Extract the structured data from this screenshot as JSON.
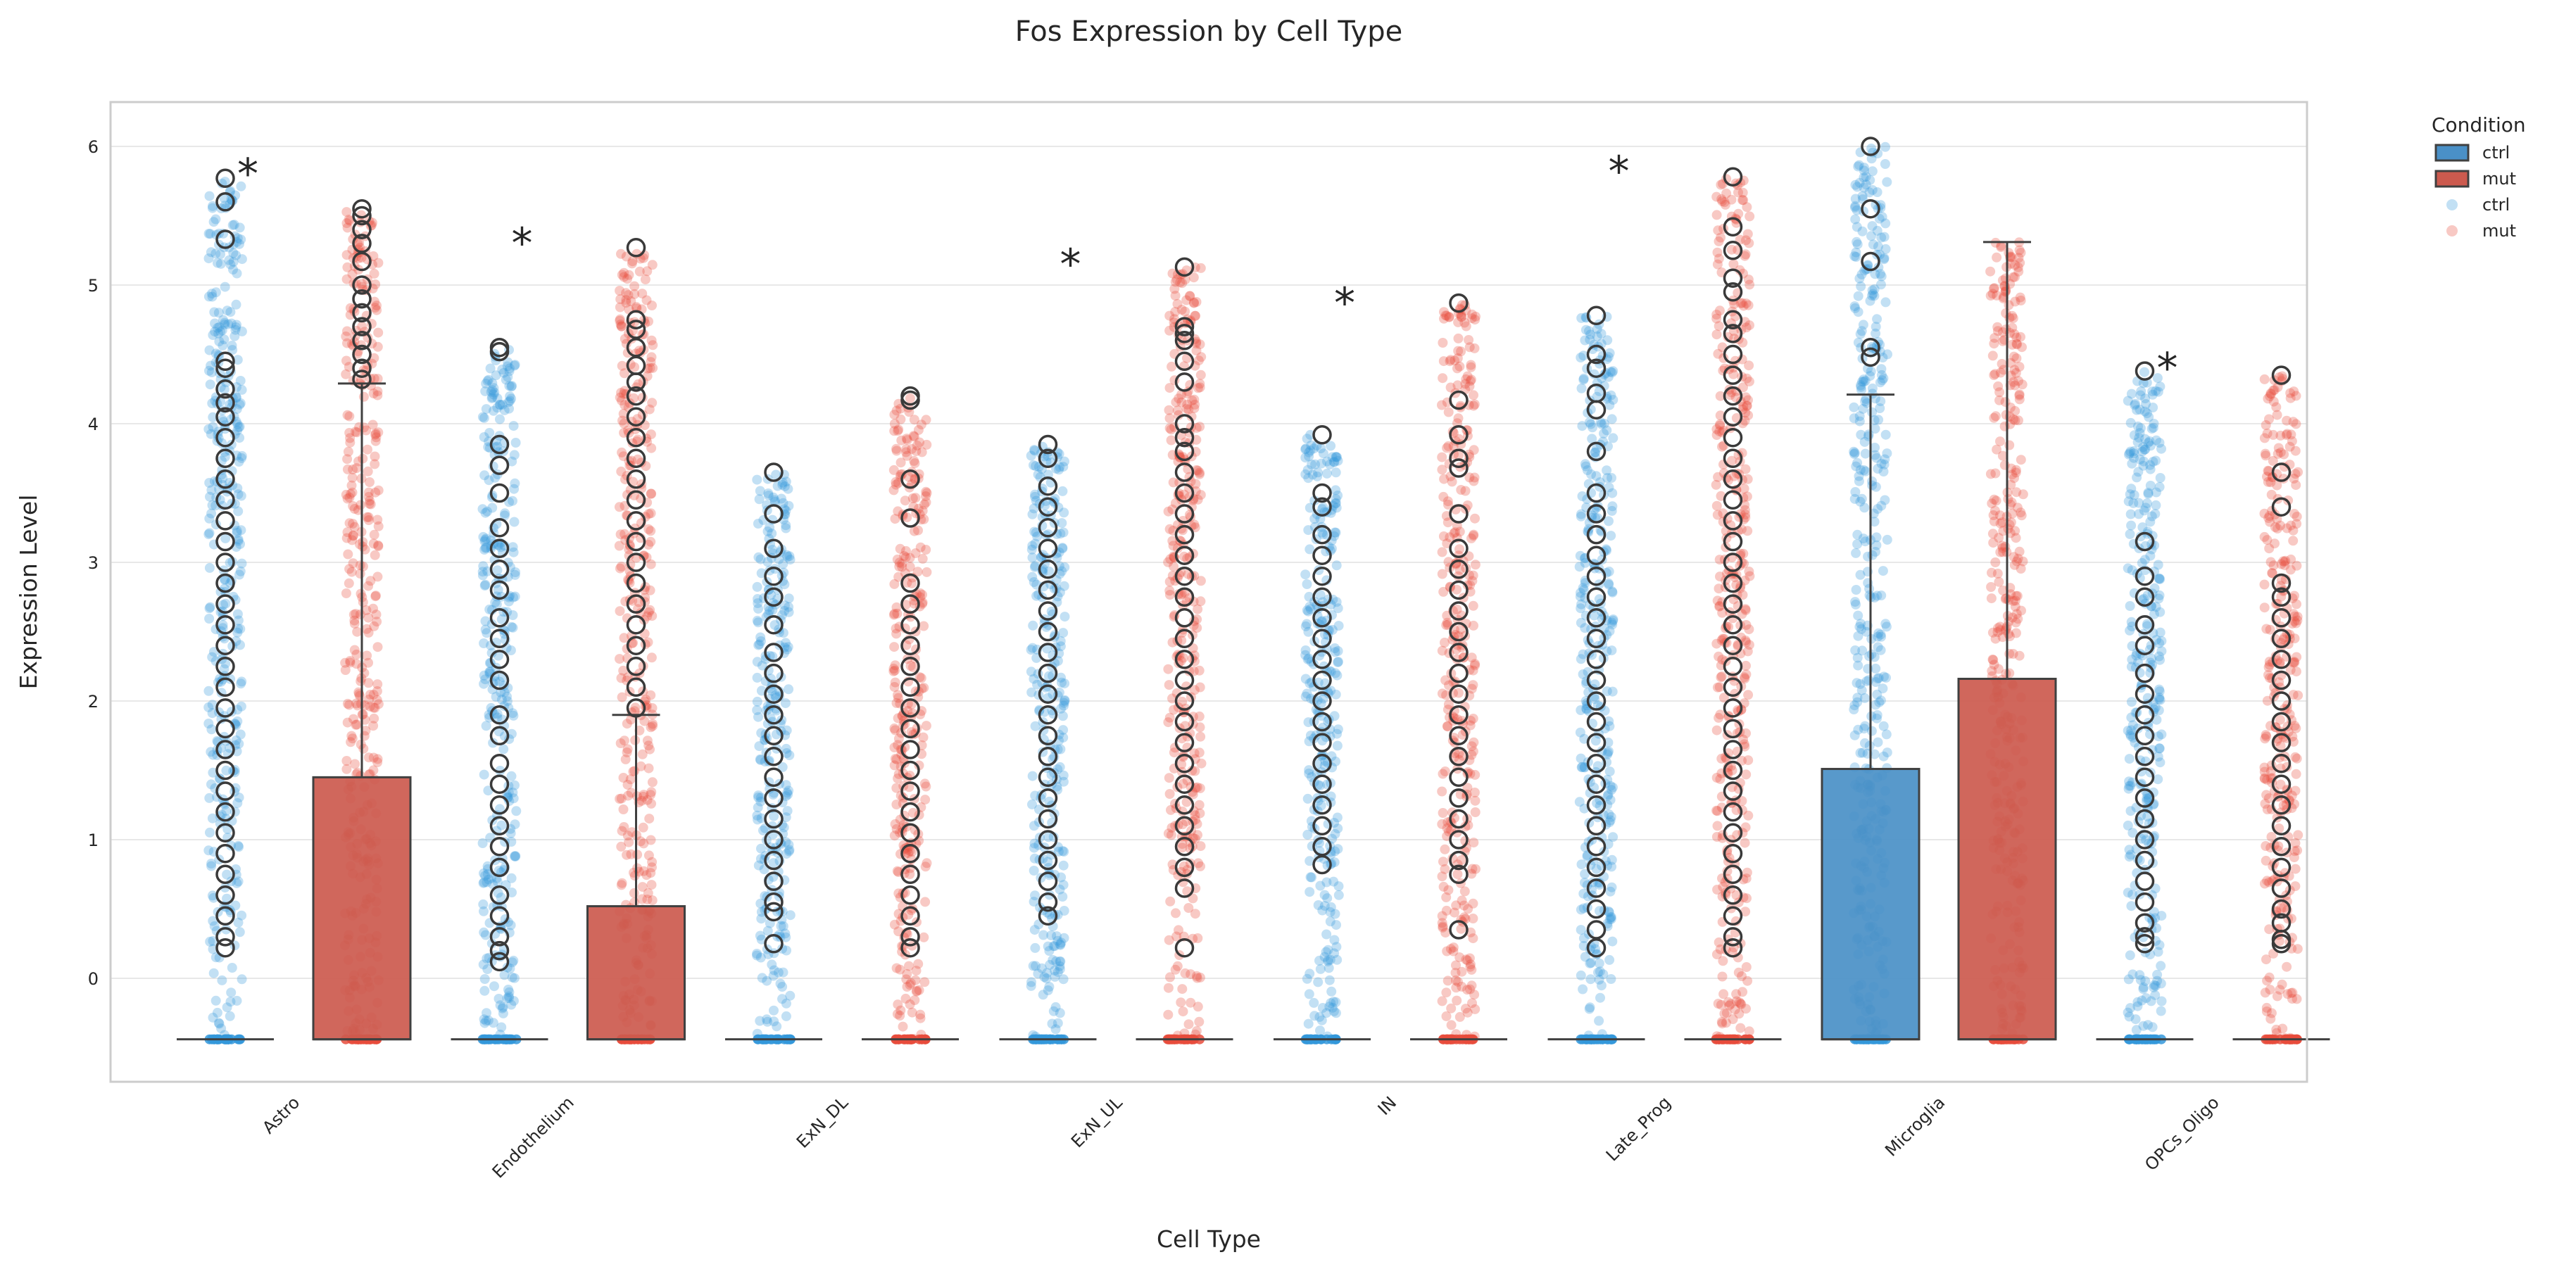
{
  "chart_data": {
    "type": "box+strip",
    "title": "Fos Expression by Cell Type",
    "xlabel": "Cell Type",
    "ylabel": "Expression Level",
    "ylim": [
      -0.75,
      6.3
    ],
    "yticks": [
      0,
      1,
      2,
      3,
      4,
      5,
      6
    ],
    "grid": true,
    "categories": [
      "Astro",
      "Endothelium",
      "ExN_DL",
      "ExN_UL",
      "IN",
      "Late_Prog",
      "Microglia",
      "OPCs_Oligo"
    ],
    "legend": {
      "title": "Condition",
      "placement": "outside-top-right",
      "entries": [
        {
          "label": "ctrl",
          "kind": "box"
        },
        {
          "label": "mut",
          "kind": "box"
        },
        {
          "label": "ctrl",
          "kind": "point"
        },
        {
          "label": "mut",
          "kind": "point"
        }
      ]
    },
    "colors": {
      "ctrl_box": "#4a90c7",
      "mut_box": "#cc5a4e",
      "ctrl_point": "#3498db",
      "mut_point": "#e74c3c",
      "edge": "#404040"
    },
    "significance": [
      {
        "category": "Astro",
        "label": "*",
        "y": 5.9
      },
      {
        "category": "Endothelium",
        "label": "*",
        "y": 5.4
      },
      {
        "category": "ExN_UL",
        "label": "*",
        "y": 5.25
      },
      {
        "category": "IN",
        "label": "*",
        "y": 4.97
      },
      {
        "category": "Late_Prog",
        "label": "*",
        "y": 5.92
      },
      {
        "category": "OPCs_Oligo",
        "label": "*",
        "y": 4.5
      }
    ],
    "series": [
      {
        "name": "ctrl",
        "boxes": [
          {
            "min": -0.44,
            "q1": -0.44,
            "median": -0.44,
            "q3": -0.44,
            "max": -0.44
          },
          {
            "min": -0.44,
            "q1": -0.44,
            "median": -0.44,
            "q3": -0.44,
            "max": -0.44
          },
          {
            "min": -0.44,
            "q1": -0.44,
            "median": -0.44,
            "q3": -0.44,
            "max": -0.44
          },
          {
            "min": -0.44,
            "q1": -0.44,
            "median": -0.44,
            "q3": -0.44,
            "max": -0.44
          },
          {
            "min": -0.44,
            "q1": -0.44,
            "median": -0.44,
            "q3": -0.44,
            "max": -0.44
          },
          {
            "min": -0.44,
            "q1": -0.44,
            "median": -0.44,
            "q3": -0.44,
            "max": -0.44
          },
          {
            "min": -0.44,
            "q1": -0.44,
            "median": -0.44,
            "q3": 1.51,
            "max": 4.21
          },
          {
            "min": -0.44,
            "q1": -0.44,
            "median": -0.44,
            "q3": -0.44,
            "max": -0.44
          }
        ],
        "outliers": [
          [
            5.77,
            5.6,
            5.33,
            4.45,
            4.4,
            4.25,
            4.15,
            4.05,
            3.9,
            3.75,
            3.6,
            3.45,
            3.3,
            3.15,
            3.0,
            2.85,
            2.7,
            2.55,
            2.4,
            2.25,
            2.1,
            1.95,
            1.8,
            1.65,
            1.5,
            1.35,
            1.2,
            1.05,
            0.9,
            0.75,
            0.6,
            0.45,
            0.3,
            0.22
          ],
          [
            4.55,
            4.52,
            3.85,
            3.7,
            3.5,
            3.25,
            3.1,
            2.95,
            2.8,
            2.6,
            2.45,
            2.3,
            2.15,
            1.9,
            1.75,
            1.55,
            1.4,
            1.25,
            1.1,
            0.95,
            0.8,
            0.6,
            0.45,
            0.3,
            0.2,
            0.12
          ],
          [
            3.65,
            3.35,
            3.1,
            2.9,
            2.75,
            2.55,
            2.35,
            2.2,
            2.05,
            1.9,
            1.75,
            1.6,
            1.45,
            1.3,
            1.15,
            1.0,
            0.85,
            0.7,
            0.55,
            0.48,
            0.25
          ],
          [
            3.85,
            3.75,
            3.55,
            3.4,
            3.25,
            3.1,
            2.95,
            2.8,
            2.65,
            2.5,
            2.35,
            2.2,
            2.05,
            1.9,
            1.75,
            1.6,
            1.45,
            1.3,
            1.15,
            1.0,
            0.85,
            0.7,
            0.55,
            0.45
          ],
          [
            3.92,
            3.5,
            3.4,
            3.2,
            3.05,
            2.9,
            2.75,
            2.6,
            2.45,
            2.3,
            2.15,
            2.0,
            1.85,
            1.7,
            1.55,
            1.4,
            1.25,
            1.1,
            0.95,
            0.82
          ],
          [
            4.78,
            4.5,
            4.4,
            4.22,
            4.1,
            3.8,
            3.5,
            3.35,
            3.2,
            3.05,
            2.9,
            2.75,
            2.6,
            2.45,
            2.3,
            2.15,
            2.0,
            1.85,
            1.7,
            1.55,
            1.4,
            1.25,
            1.1,
            0.95,
            0.8,
            0.65,
            0.5,
            0.35,
            0.22
          ],
          [
            6.0,
            5.55,
            5.17,
            4.55,
            4.48
          ],
          [
            4.38,
            3.15,
            2.9,
            2.75,
            2.55,
            2.4,
            2.2,
            2.05,
            1.9,
            1.75,
            1.6,
            1.45,
            1.3,
            1.15,
            1.0,
            0.85,
            0.7,
            0.55,
            0.4,
            0.3,
            0.25
          ]
        ]
      },
      {
        "name": "mut",
        "boxes": [
          {
            "min": -0.44,
            "q1": -0.44,
            "median": -0.44,
            "q3": 1.45,
            "max": 4.29
          },
          {
            "min": -0.44,
            "q1": -0.44,
            "median": -0.44,
            "q3": 0.52,
            "max": 1.9
          },
          {
            "min": -0.44,
            "q1": -0.44,
            "median": -0.44,
            "q3": -0.44,
            "max": -0.44
          },
          {
            "min": -0.44,
            "q1": -0.44,
            "median": -0.44,
            "q3": -0.44,
            "max": -0.44
          },
          {
            "min": -0.44,
            "q1": -0.44,
            "median": -0.44,
            "q3": -0.44,
            "max": -0.44
          },
          {
            "min": -0.44,
            "q1": -0.44,
            "median": -0.44,
            "q3": -0.44,
            "max": -0.44
          },
          {
            "min": -0.44,
            "q1": -0.44,
            "median": -0.44,
            "q3": 2.16,
            "max": 5.31
          },
          {
            "min": -0.44,
            "q1": -0.44,
            "median": -0.44,
            "q3": -0.44,
            "max": -0.44
          }
        ],
        "outliers": [
          [
            5.55,
            5.5,
            5.4,
            5.3,
            5.17,
            5.0,
            4.9,
            4.8,
            4.7,
            4.6,
            4.5,
            4.4,
            4.32
          ],
          [
            5.27,
            4.75,
            4.68,
            4.55,
            4.42,
            4.3,
            4.2,
            4.05,
            3.9,
            3.75,
            3.6,
            3.45,
            3.3,
            3.15,
            3.0,
            2.85,
            2.7,
            2.55,
            2.4,
            2.25,
            2.1,
            1.95
          ],
          [
            4.2,
            4.17,
            3.6,
            3.32,
            2.85,
            2.7,
            2.55,
            2.4,
            2.25,
            2.1,
            1.95,
            1.8,
            1.65,
            1.5,
            1.35,
            1.2,
            1.05,
            0.9,
            0.75,
            0.6,
            0.45,
            0.3,
            0.22
          ],
          [
            5.13,
            4.7,
            4.65,
            4.6,
            4.45,
            4.3,
            4.0,
            3.9,
            3.8,
            3.65,
            3.5,
            3.35,
            3.2,
            3.05,
            2.9,
            2.75,
            2.6,
            2.45,
            2.3,
            2.15,
            2.0,
            1.85,
            1.7,
            1.55,
            1.4,
            1.25,
            1.1,
            0.95,
            0.8,
            0.65,
            0.22
          ],
          [
            4.87,
            4.17,
            3.92,
            3.75,
            3.68,
            3.35,
            3.1,
            2.95,
            2.8,
            2.65,
            2.5,
            2.35,
            2.2,
            2.05,
            1.9,
            1.75,
            1.6,
            1.45,
            1.3,
            1.15,
            1.0,
            0.85,
            0.75,
            0.35
          ],
          [
            5.78,
            5.42,
            5.25,
            5.05,
            4.95,
            4.75,
            4.65,
            4.5,
            4.35,
            4.2,
            4.05,
            3.9,
            3.75,
            3.6,
            3.45,
            3.3,
            3.15,
            3.0,
            2.85,
            2.7,
            2.55,
            2.4,
            2.25,
            2.1,
            1.95,
            1.8,
            1.65,
            1.5,
            1.35,
            1.2,
            1.05,
            0.9,
            0.75,
            0.6,
            0.45,
            0.3,
            0.22
          ],
          [],
          [
            4.35,
            3.65,
            3.4,
            2.85,
            2.75,
            2.6,
            2.45,
            2.3,
            2.15,
            2.0,
            1.85,
            1.7,
            1.55,
            1.4,
            1.25,
            1.1,
            0.95,
            0.8,
            0.65,
            0.5,
            0.4,
            0.28,
            0.25
          ]
        ]
      }
    ]
  }
}
